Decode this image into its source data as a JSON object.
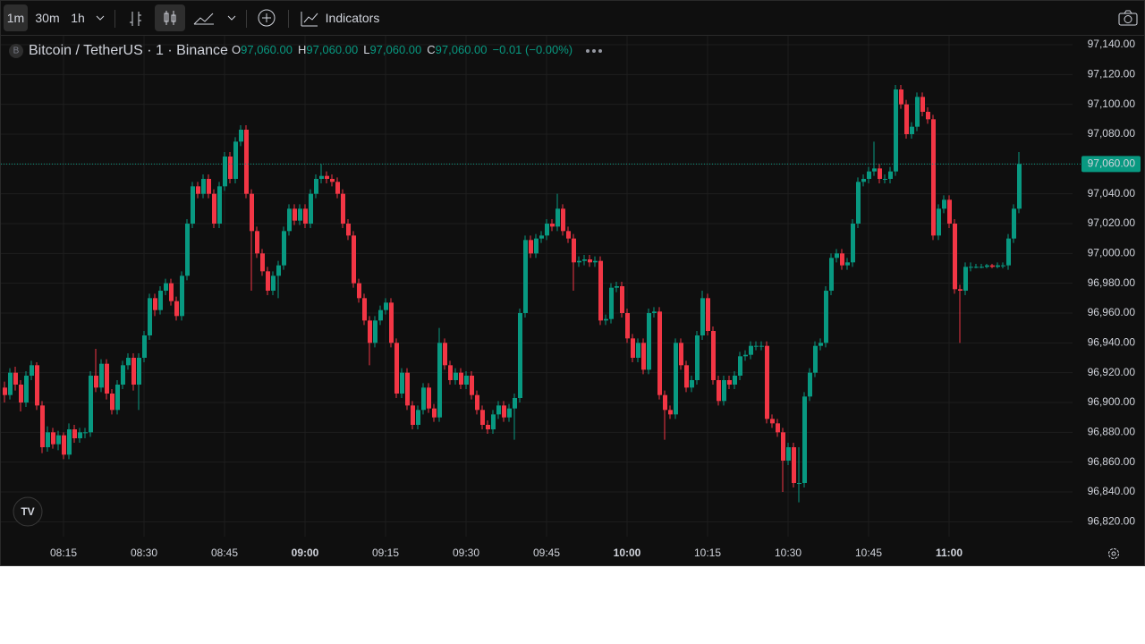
{
  "toolbar": {
    "intervals": [
      "1m",
      "30m",
      "1h"
    ],
    "indicators": "Indicators"
  },
  "legend": {
    "badge": "B",
    "symbol": "Bitcoin / TetherUS · 1 · Binance",
    "o_label": "O",
    "open": "97,060.00",
    "h_label": "H",
    "high": "97,060.00",
    "l_label": "L",
    "low": "97,060.00",
    "c_label": "C",
    "close": "97,060.00",
    "change": "−0.01 (−0.00%)"
  },
  "chart_data": {
    "type": "candlestick",
    "up_color": "#089981",
    "down_color": "#f23645",
    "grid": true,
    "ylim": [
      96810,
      97146
    ],
    "yticks": [
      {
        "value": 96820,
        "label": "96,820.00"
      },
      {
        "value": 96840,
        "label": "96,840.00"
      },
      {
        "value": 96860,
        "label": "96,860.00"
      },
      {
        "value": 96880,
        "label": "96,880.00"
      },
      {
        "value": 96900,
        "label": "96,900.00"
      },
      {
        "value": 96920,
        "label": "96,920.00"
      },
      {
        "value": 96940,
        "label": "96,940.00"
      },
      {
        "value": 96960,
        "label": "96,960.00"
      },
      {
        "value": 96980,
        "label": "96,980.00"
      },
      {
        "value": 97000,
        "label": "97,000.00"
      },
      {
        "value": 97020,
        "label": "97,020.00"
      },
      {
        "value": 97040,
        "label": "97,040.00"
      },
      {
        "value": 97060,
        "label": "97,060.00"
      },
      {
        "value": 97080,
        "label": "97,080.00"
      },
      {
        "value": 97100,
        "label": "97,100.00"
      },
      {
        "value": 97120,
        "label": "97,120.00"
      },
      {
        "value": 97140,
        "label": "97,140.00"
      }
    ],
    "last_price": {
      "value": 97060,
      "label": "97,060.00"
    },
    "xticks": [
      "08:15",
      "08:30",
      "08:45",
      {
        "label": "09:00",
        "bold": true
      },
      "09:15",
      "09:30",
      "09:45",
      {
        "label": "10:00",
        "bold": true
      },
      "10:15",
      "10:30",
      "10:45",
      {
        "label": "11:00",
        "bold": true
      }
    ],
    "x": [
      "08:04",
      "08:05",
      "08:06",
      "08:07",
      "08:08",
      "08:09",
      "08:10",
      "08:11",
      "08:12",
      "08:13",
      "08:14",
      "08:15",
      "08:16",
      "08:17",
      "08:18",
      "08:19",
      "08:20",
      "08:21",
      "08:22",
      "08:23",
      "08:24",
      "08:25",
      "08:26",
      "08:27",
      "08:28",
      "08:29",
      "08:30",
      "08:31",
      "08:32",
      "08:33",
      "08:34",
      "08:35",
      "08:36",
      "08:37",
      "08:38",
      "08:39",
      "08:40",
      "08:41",
      "08:42",
      "08:43",
      "08:44",
      "08:45",
      "08:46",
      "08:47",
      "08:48",
      "08:49",
      "08:50",
      "08:51",
      "08:52",
      "08:53",
      "08:54",
      "08:55",
      "08:56",
      "08:57",
      "08:58",
      "08:59",
      "09:00",
      "09:01",
      "09:02",
      "09:03",
      "09:04",
      "09:05",
      "09:06",
      "09:07",
      "09:08",
      "09:09",
      "09:10",
      "09:11",
      "09:12",
      "09:13",
      "09:14",
      "09:15",
      "09:16",
      "09:17",
      "09:18",
      "09:19",
      "09:20",
      "09:21",
      "09:22",
      "09:23",
      "09:24",
      "09:25",
      "09:26",
      "09:27",
      "09:28",
      "09:29",
      "09:30",
      "09:31",
      "09:32",
      "09:33",
      "09:34",
      "09:35",
      "09:36",
      "09:37",
      "09:38",
      "09:39",
      "09:40",
      "09:41",
      "09:42",
      "09:43",
      "09:44",
      "09:45",
      "09:46",
      "09:47",
      "09:48",
      "09:49",
      "09:50",
      "09:51",
      "09:52",
      "09:53",
      "09:54",
      "09:55",
      "09:56",
      "09:57",
      "09:58",
      "09:59",
      "10:00",
      "10:01",
      "10:02",
      "10:03",
      "10:04",
      "10:05",
      "10:06",
      "10:07",
      "10:08",
      "10:09",
      "10:10",
      "10:11",
      "10:12",
      "10:13",
      "10:14",
      "10:15",
      "10:16",
      "10:17",
      "10:18",
      "10:19",
      "10:20",
      "10:21",
      "10:22",
      "10:23",
      "10:24",
      "10:25",
      "10:26",
      "10:27",
      "10:28",
      "10:29",
      "10:30",
      "10:31",
      "10:32",
      "10:33",
      "10:34",
      "10:35",
      "10:36",
      "10:37",
      "10:38",
      "10:39",
      "10:40",
      "10:41",
      "10:42",
      "10:43",
      "10:44",
      "10:45",
      "10:46",
      "10:47",
      "10:48",
      "10:49",
      "10:50",
      "10:51",
      "10:52",
      "10:53",
      "10:54",
      "10:55",
      "10:56",
      "10:57",
      "10:58",
      "10:59",
      "11:00",
      "11:01",
      "11:02",
      "11:03",
      "11:04",
      "11:05",
      "11:06",
      "11:07",
      "11:08",
      "11:09",
      "11:10",
      "11:11",
      "11:12",
      "11:13"
    ],
    "ohlc": [
      [
        96910,
        96914,
        96900,
        96905
      ],
      [
        96905,
        96923,
        96902,
        96920
      ],
      [
        96920,
        96924,
        96908,
        96912
      ],
      [
        96912,
        96915,
        96894,
        96900
      ],
      [
        96900,
        96921,
        96897,
        96918
      ],
      [
        96918,
        96928,
        96915,
        96925
      ],
      [
        96925,
        96927,
        96895,
        96898
      ],
      [
        96898,
        96901,
        96866,
        96870
      ],
      [
        96870,
        96884,
        96867,
        96880
      ],
      [
        96880,
        96883,
        96869,
        96872
      ],
      [
        96872,
        96881,
        96868,
        96878
      ],
      [
        96878,
        96880,
        96862,
        96865
      ],
      [
        96865,
        96886,
        96862,
        96882
      ],
      [
        96882,
        96885,
        96873,
        96876
      ],
      [
        96876,
        96883,
        96873,
        96880
      ],
      [
        96880,
        96883,
        96876,
        96880
      ],
      [
        96880,
        96921,
        96877,
        96918
      ],
      [
        96918,
        96936,
        96907,
        96910
      ],
      [
        96910,
        96929,
        96907,
        96926
      ],
      [
        96926,
        96929,
        96902,
        96906
      ],
      [
        96906,
        96909,
        96892,
        96895
      ],
      [
        96895,
        96915,
        96892,
        96912
      ],
      [
        96912,
        96928,
        96909,
        96925
      ],
      [
        96925,
        96933,
        96922,
        96930
      ],
      [
        96930,
        96933,
        96908,
        96912
      ],
      [
        96912,
        96933,
        96895,
        96930
      ],
      [
        96930,
        96948,
        96927,
        96945
      ],
      [
        96945,
        96973,
        96942,
        96970
      ],
      [
        96970,
        96973,
        96958,
        96962
      ],
      [
        96962,
        96978,
        96959,
        96975
      ],
      [
        96975,
        96983,
        96972,
        96980
      ],
      [
        96980,
        96983,
        96965,
        96968
      ],
      [
        96968,
        96971,
        96955,
        96958
      ],
      [
        96958,
        96988,
        96955,
        96985
      ],
      [
        96985,
        97023,
        96982,
        97020
      ],
      [
        97020,
        97048,
        97017,
        97045
      ],
      [
        97045,
        97048,
        97037,
        97040
      ],
      [
        97040,
        97053,
        97037,
        97050
      ],
      [
        97050,
        97053,
        97037,
        97040
      ],
      [
        97040,
        97043,
        97017,
        97020
      ],
      [
        97020,
        97048,
        97017,
        97045
      ],
      [
        97045,
        97068,
        97042,
        97065
      ],
      [
        97065,
        97068,
        97047,
        97050
      ],
      [
        97050,
        97078,
        97047,
        97075
      ],
      [
        97075,
        97086,
        97072,
        97083
      ],
      [
        97083,
        97086,
        97037,
        97040
      ],
      [
        97040,
        97043,
        96975,
        97015
      ],
      [
        97015,
        97018,
        96997,
        97000
      ],
      [
        97000,
        97003,
        96985,
        96988
      ],
      [
        96988,
        96991,
        96972,
        96975
      ],
      [
        96975,
        96988,
        96972,
        96985
      ],
      [
        96985,
        96995,
        96970,
        96992
      ],
      [
        96992,
        97018,
        96989,
        97015
      ],
      [
        97015,
        97033,
        97012,
        97030
      ],
      [
        97030,
        97033,
        97019,
        97022
      ],
      [
        97022,
        97033,
        97019,
        97030
      ],
      [
        97030,
        97033,
        97017,
        97020
      ],
      [
        97020,
        97043,
        97017,
        97040
      ],
      [
        97040,
        97053,
        97037,
        97050
      ],
      [
        97050,
        97060,
        97047,
        97052
      ],
      [
        97052,
        97055,
        97047,
        97050
      ],
      [
        97050,
        97053,
        97045,
        97048
      ],
      [
        97048,
        97051,
        97037,
        97040
      ],
      [
        97040,
        97043,
        97017,
        97020
      ],
      [
        97020,
        97023,
        97009,
        97012
      ],
      [
        97012,
        97015,
        96977,
        96980
      ],
      [
        96980,
        96983,
        96967,
        96970
      ],
      [
        96970,
        96973,
        96952,
        96955
      ],
      [
        96955,
        96958,
        96925,
        96940
      ],
      [
        96940,
        96958,
        96937,
        96955
      ],
      [
        96955,
        96965,
        96952,
        96962
      ],
      [
        96962,
        96970,
        96959,
        96967
      ],
      [
        96967,
        96970,
        96937,
        96940
      ],
      [
        96940,
        96943,
        96903,
        96906
      ],
      [
        96906,
        96923,
        96903,
        96920
      ],
      [
        96920,
        96923,
        96895,
        96898
      ],
      [
        96898,
        96901,
        96882,
        96885
      ],
      [
        96885,
        96898,
        96882,
        96895
      ],
      [
        96895,
        96913,
        96892,
        96910
      ],
      [
        96910,
        96913,
        96893,
        96896
      ],
      [
        96896,
        96899,
        96887,
        96890
      ],
      [
        96890,
        96950,
        96887,
        96940
      ],
      [
        96940,
        96943,
        96922,
        96925
      ],
      [
        96925,
        96928,
        96912,
        96915
      ],
      [
        96915,
        96923,
        96912,
        96920
      ],
      [
        96920,
        96923,
        96909,
        96912
      ],
      [
        96912,
        96921,
        96909,
        96918
      ],
      [
        96918,
        96921,
        96902,
        96905
      ],
      [
        96905,
        96908,
        96892,
        96895
      ],
      [
        96895,
        96898,
        96882,
        96885
      ],
      [
        96885,
        96888,
        96879,
        96882
      ],
      [
        96882,
        96895,
        96879,
        96892
      ],
      [
        96892,
        96901,
        96889,
        96898
      ],
      [
        96898,
        96901,
        96887,
        96890
      ],
      [
        96890,
        96899,
        96887,
        96896
      ],
      [
        96896,
        96906,
        96875,
        96903
      ],
      [
        96903,
        96963,
        96900,
        96960
      ],
      [
        96960,
        97012,
        96957,
        97009
      ],
      [
        97009,
        97012,
        96997,
        97000
      ],
      [
        97000,
        97013,
        96997,
        97010
      ],
      [
        97010,
        97015,
        97007,
        97012
      ],
      [
        97012,
        97023,
        97009,
        97020
      ],
      [
        97020,
        97023,
        97015,
        97018
      ],
      [
        97018,
        97040,
        97015,
        97030
      ],
      [
        97030,
        97033,
        97012,
        97015
      ],
      [
        97015,
        97018,
        97007,
        97010
      ],
      [
        97010,
        97013,
        96975,
        96994
      ],
      [
        96994,
        96998,
        96991,
        96995
      ],
      [
        96995,
        96999,
        96992,
        96996
      ],
      [
        96996,
        96999,
        96991,
        96994
      ],
      [
        96994,
        96998,
        96991,
        96995
      ],
      [
        96995,
        96998,
        96952,
        96955
      ],
      [
        96955,
        96959,
        96952,
        96956
      ],
      [
        96956,
        96980,
        96953,
        96977
      ],
      [
        96977,
        96981,
        96974,
        96978
      ],
      [
        96978,
        96981,
        96957,
        96960
      ],
      [
        96960,
        96963,
        96940,
        96943
      ],
      [
        96943,
        96946,
        96927,
        96930
      ],
      [
        96930,
        96943,
        96927,
        96940
      ],
      [
        96940,
        96943,
        96919,
        96922
      ],
      [
        96922,
        96963,
        96919,
        96960
      ],
      [
        96960,
        96964,
        96957,
        96961
      ],
      [
        96961,
        96964,
        96902,
        96905
      ],
      [
        96905,
        96908,
        96875,
        96895
      ],
      [
        96895,
        96898,
        96889,
        96892
      ],
      [
        96892,
        96943,
        96889,
        96940
      ],
      [
        96940,
        96943,
        96922,
        96925
      ],
      [
        96925,
        96928,
        96907,
        96910
      ],
      [
        96910,
        96918,
        96907,
        96915
      ],
      [
        96915,
        96948,
        96912,
        96945
      ],
      [
        96945,
        96975,
        96942,
        96970
      ],
      [
        96970,
        96973,
        96945,
        96948
      ],
      [
        96948,
        96951,
        96912,
        96915
      ],
      [
        96915,
        96918,
        96898,
        96901
      ],
      [
        96901,
        96918,
        96898,
        96915
      ],
      [
        96915,
        96918,
        96909,
        96912
      ],
      [
        96912,
        96921,
        96909,
        96918
      ],
      [
        96918,
        96934,
        96915,
        96931
      ],
      [
        96931,
        96935,
        96928,
        96932
      ],
      [
        96932,
        96941,
        96929,
        96938
      ],
      [
        96938,
        96941,
        96935,
        96938
      ],
      [
        96938,
        96941,
        96935,
        96938
      ],
      [
        96938,
        96941,
        96886,
        96889
      ],
      [
        96889,
        96892,
        96883,
        96886
      ],
      [
        96886,
        96889,
        96877,
        96880
      ],
      [
        96880,
        96883,
        96840,
        96861
      ],
      [
        96861,
        96873,
        96858,
        96870
      ],
      [
        96870,
        96873,
        96843,
        96846
      ],
      [
        96846,
        96870,
        96833,
        96846
      ],
      [
        96846,
        96907,
        96843,
        96904
      ],
      [
        96904,
        96923,
        96901,
        96920
      ],
      [
        96920,
        96941,
        96917,
        96938
      ],
      [
        96938,
        96943,
        96935,
        96940
      ],
      [
        96940,
        96978,
        96937,
        96975
      ],
      [
        96975,
        97000,
        96972,
        96997
      ],
      [
        96997,
        97003,
        96994,
        97000
      ],
      [
        97000,
        97003,
        96989,
        96992
      ],
      [
        96992,
        96997,
        96989,
        96994
      ],
      [
        96994,
        97023,
        96991,
        97020
      ],
      [
        97020,
        97051,
        97017,
        97048
      ],
      [
        97048,
        97053,
        97045,
        97050
      ],
      [
        97050,
        97058,
        97047,
        97055
      ],
      [
        97055,
        97075,
        97052,
        97057
      ],
      [
        97057,
        97060,
        97047,
        97050
      ],
      [
        97050,
        97053,
        97047,
        97050
      ],
      [
        97050,
        97058,
        97047,
        97055
      ],
      [
        97055,
        97113,
        97052,
        97110
      ],
      [
        97110,
        97113,
        97097,
        97100
      ],
      [
        97100,
        97103,
        97077,
        97080
      ],
      [
        97080,
        97088,
        97077,
        97085
      ],
      [
        97085,
        97108,
        97082,
        97105
      ],
      [
        97105,
        97108,
        97092,
        97095
      ],
      [
        97095,
        97098,
        97087,
        97090
      ],
      [
        97090,
        97093,
        97009,
        97012
      ],
      [
        97012,
        97033,
        97009,
        97030
      ],
      [
        97030,
        97039,
        97027,
        97036
      ],
      [
        97036,
        97039,
        97017,
        97020
      ],
      [
        97020,
        97023,
        96973,
        96976
      ],
      [
        96976,
        96979,
        96940,
        96975
      ],
      [
        96975,
        96994,
        96972,
        96991
      ],
      [
        96991,
        96994,
        96988,
        96991
      ],
      [
        96991,
        96993,
        96990,
        96991
      ],
      [
        96991,
        96993,
        96990,
        96991
      ],
      [
        96991,
        96993,
        96990,
        96992
      ],
      [
        96992,
        96993,
        96990,
        96991
      ],
      [
        96991,
        96994,
        96990,
        96992
      ],
      [
        96992,
        96994,
        96990,
        96992
      ],
      [
        96992,
        97013,
        96989,
        97010
      ],
      [
        97010,
        97033,
        97007,
        97030
      ],
      [
        97030,
        97068,
        97027,
        97060
      ]
    ]
  }
}
